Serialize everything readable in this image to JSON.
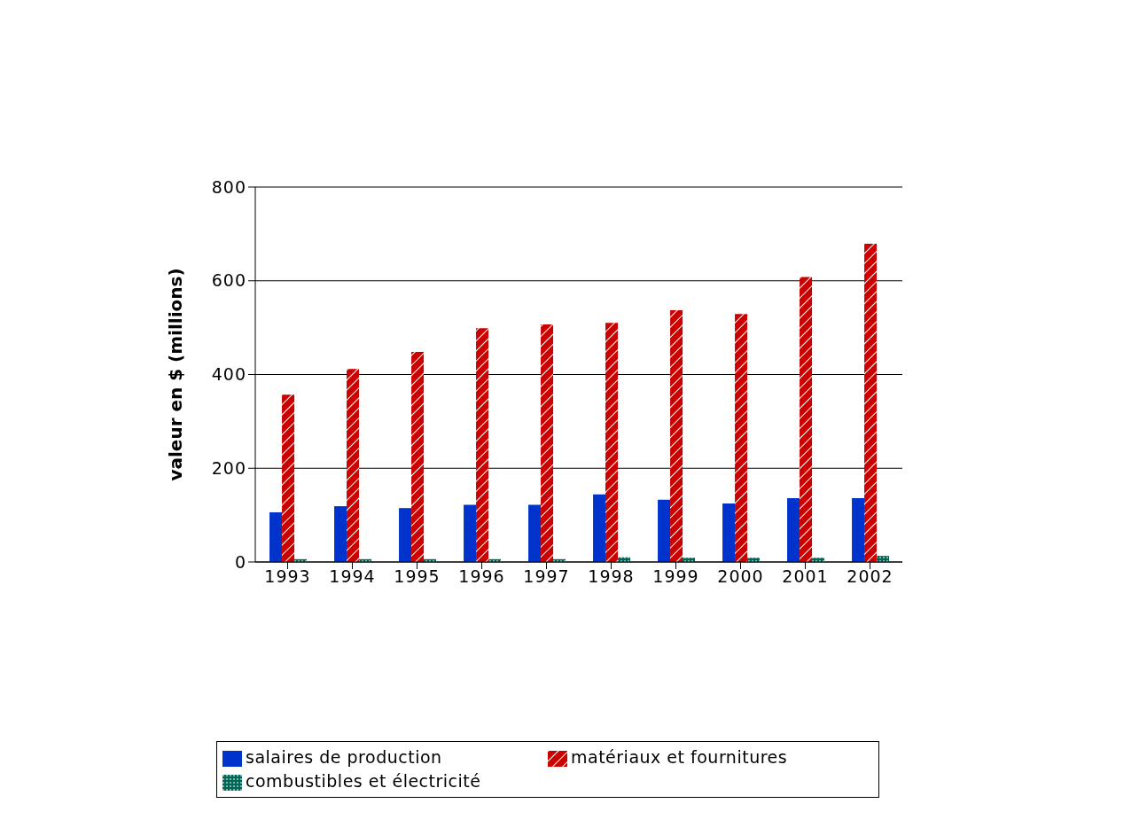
{
  "chart_data": {
    "type": "bar",
    "ylabel": "valeur en $ (millions)",
    "categories": [
      "1993",
      "1994",
      "1995",
      "1996",
      "1997",
      "1998",
      "1999",
      "2000",
      "2001",
      "2002"
    ],
    "series": [
      {
        "name": "salaires de production",
        "color": "#0033cc",
        "values": [
          106,
          119,
          115,
          122,
          122,
          144,
          133,
          125,
          136,
          136
        ]
      },
      {
        "name": "matériaux et fournitures",
        "color": "#cc0000",
        "values": [
          357,
          412,
          448,
          499,
          507,
          510,
          537,
          529,
          608,
          679
        ]
      },
      {
        "name": "combustibles et électricité",
        "color": "#006655",
        "values": [
          6,
          6,
          6,
          6,
          6,
          10,
          9,
          9,
          9,
          13
        ]
      }
    ],
    "ylim": [
      0,
      800
    ],
    "yticks": [
      0,
      200,
      400,
      600,
      800
    ],
    "grid": "y",
    "legend": "bottom"
  }
}
